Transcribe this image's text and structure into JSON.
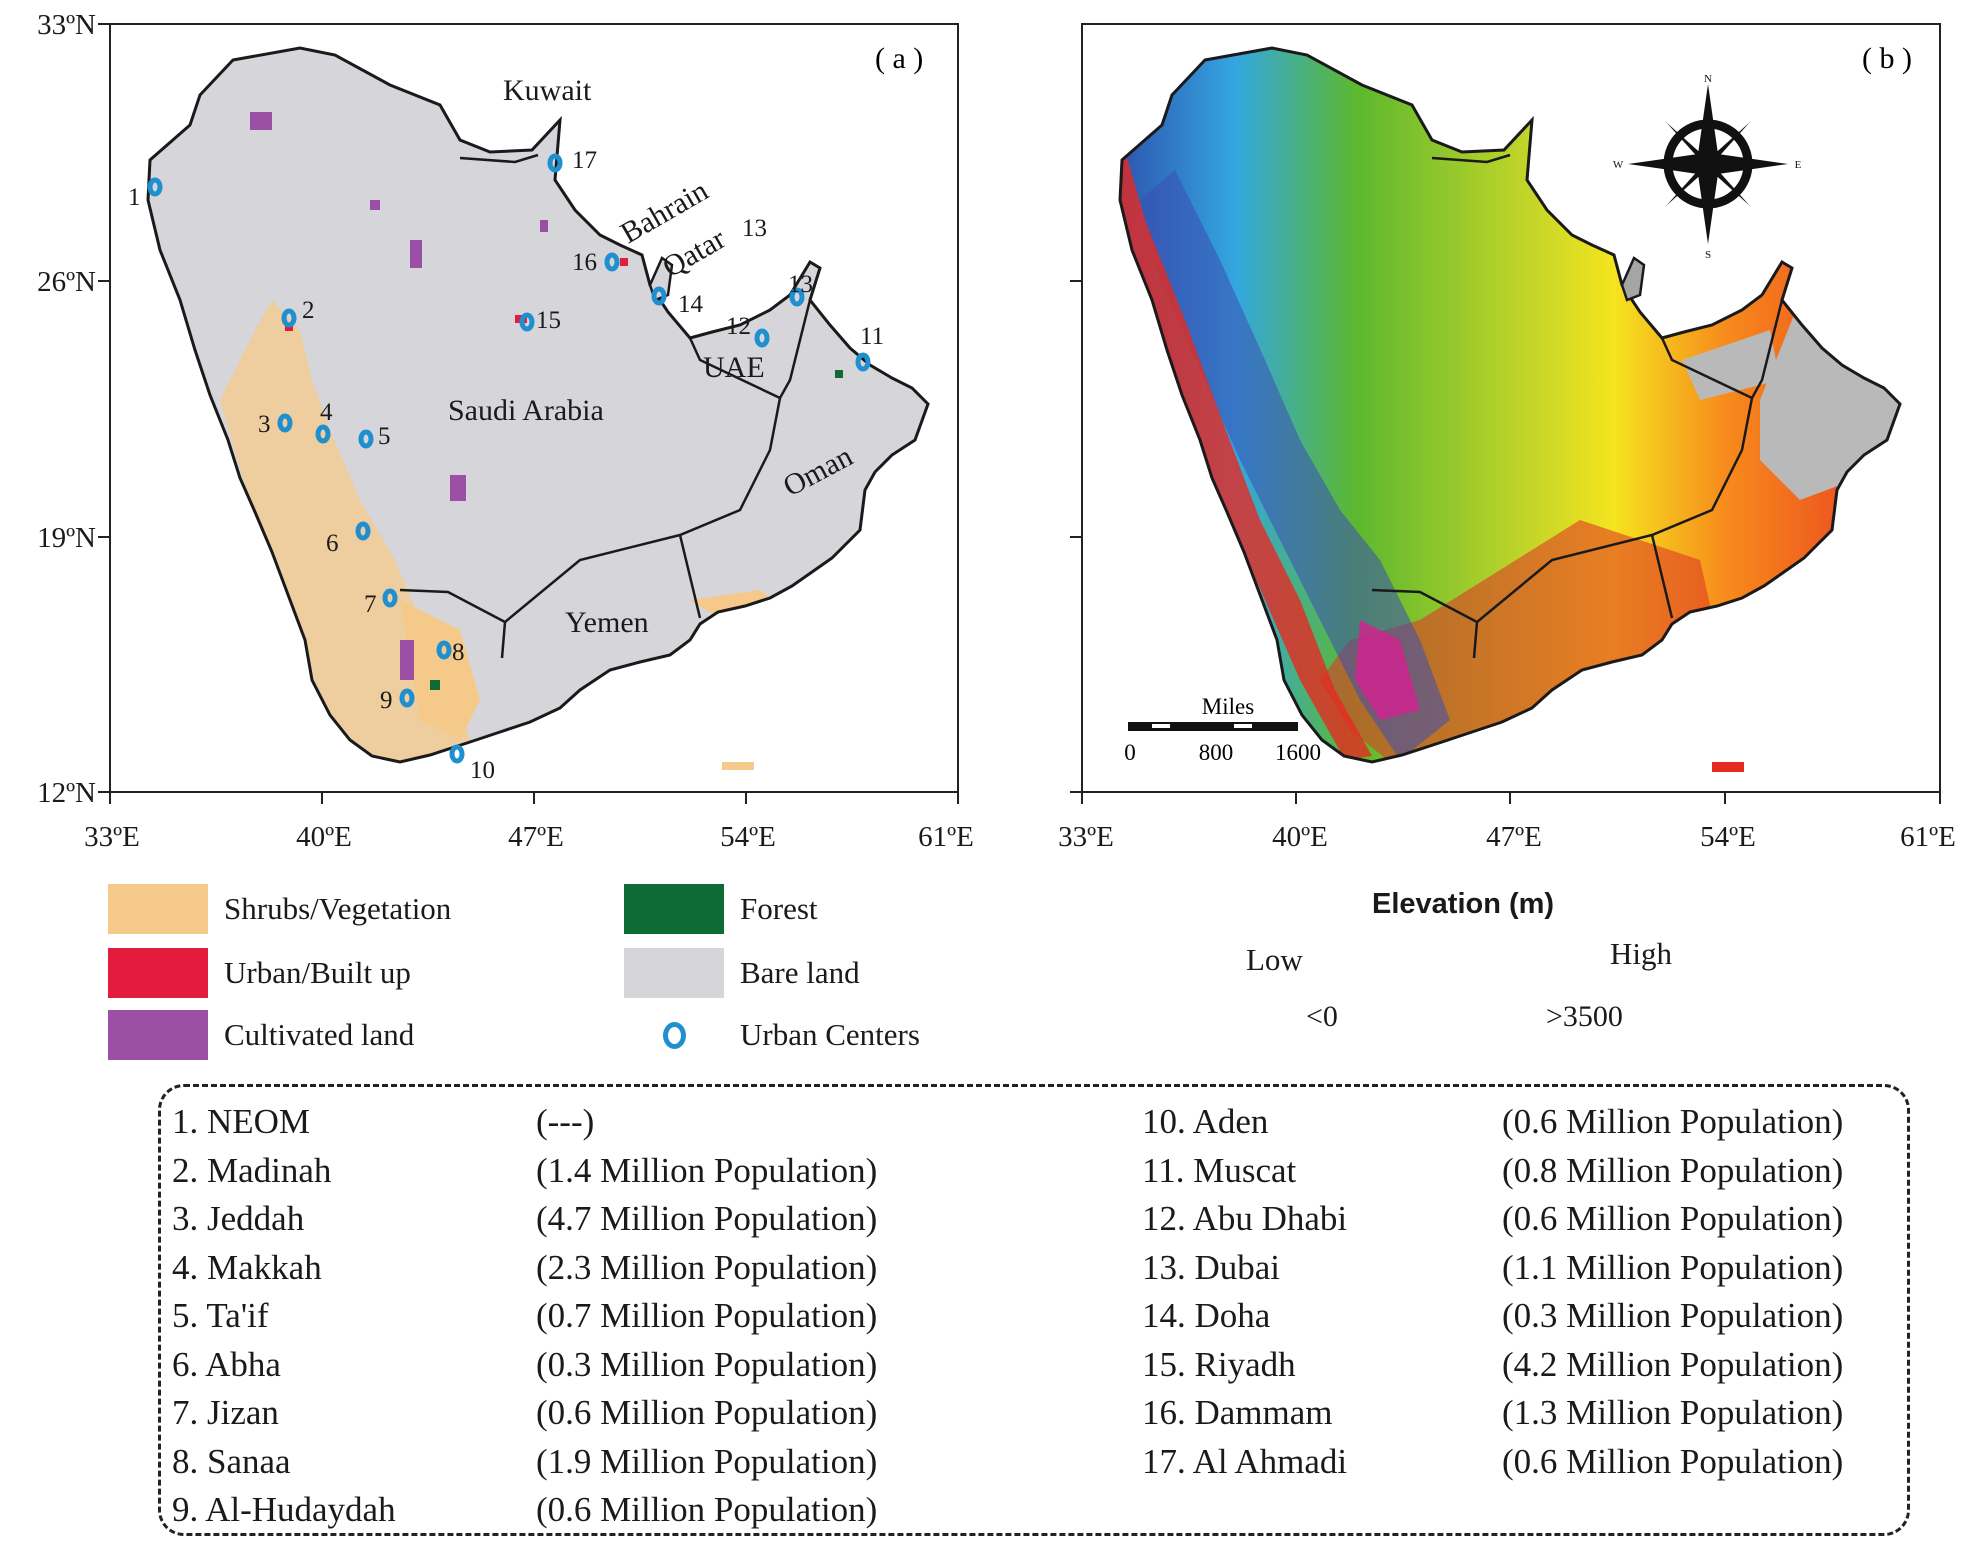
{
  "panels": {
    "a": {
      "label": "( a )",
      "y_ticks": [
        "33ºN",
        "26ºN",
        "19ºN",
        "12ºN"
      ],
      "x_ticks": [
        "33ºE",
        "40ºE",
        "47ºE",
        "54ºE",
        "61ºE"
      ],
      "country_labels": [
        "Kuwait",
        "Bahrain",
        "Qatar",
        "UAE",
        "Saudi Arabia",
        "Oman",
        "Yemen"
      ],
      "city_numbers": [
        "1",
        "2",
        "3",
        "4",
        "5",
        "6",
        "7",
        "8",
        "9",
        "10",
        "11",
        "12",
        "13",
        "13",
        "14",
        "15",
        "16",
        "17"
      ]
    },
    "b": {
      "label": "( b )",
      "x_ticks": [
        "33ºE",
        "40ºE",
        "47ºE",
        "54ºE",
        "61ºE"
      ],
      "compass": {
        "n": "N",
        "s": "S",
        "e": "E",
        "w": "W"
      },
      "scale_bar": {
        "title": "Miles",
        "labels": [
          "0",
          "800",
          "1600"
        ]
      }
    }
  },
  "land_legend": [
    {
      "label": "Shrubs/Vegetation",
      "color": "#f5c98a"
    },
    {
      "label": "Forest",
      "color": "#0f6b35"
    },
    {
      "label": "Urban/Built up",
      "color": "#e31c3d"
    },
    {
      "label": "Bare land",
      "color": "#d6d5da"
    },
    {
      "label": "Cultivated land",
      "color": "#9b4fa5"
    },
    {
      "label": "Urban Centers",
      "color": "#1f8fd0"
    }
  ],
  "elevation_legend": {
    "title": "Elevation (m)",
    "low": "Low",
    "high": "High",
    "min": "<0",
    "max": ">3500"
  },
  "cities": [
    {
      "name": "1. NEOM",
      "pop": "(---)"
    },
    {
      "name": "2. Madinah",
      "pop": "(1.4 Million Population)"
    },
    {
      "name": "3. Jeddah",
      "pop": "(4.7 Million Population)"
    },
    {
      "name": "4. Makkah",
      "pop": "(2.3 Million Population)"
    },
    {
      "name": "5. Ta'if",
      "pop": "(0.7 Million Population)"
    },
    {
      "name": "6. Abha",
      "pop": "(0.3 Million Population)"
    },
    {
      "name": "7. Jizan",
      "pop": "(0.6 Million Population)"
    },
    {
      "name": "8. Sanaa",
      "pop": "(1.9 Million Population)"
    },
    {
      "name": "9. Al-Hudaydah",
      "pop": "(0.6 Million Population)"
    },
    {
      "name": "10. Aden",
      "pop": "(0.6 Million Population)"
    },
    {
      "name": "11. Muscat",
      "pop": "(0.8 Million Population)"
    },
    {
      "name": "12. Abu Dhabi",
      "pop": "(0.6 Million Population)"
    },
    {
      "name": "13. Dubai",
      "pop": "(1.1 Million Population)"
    },
    {
      "name": "14. Doha",
      "pop": "(0.3 Million Population)"
    },
    {
      "name": "15. Riyadh",
      "pop": "(4.2 Million Population)"
    },
    {
      "name": "16. Dammam",
      "pop": "(1.3 Million Population)"
    },
    {
      "name": "17. Al Ahmadi",
      "pop": "(0.6 Million Population)"
    }
  ]
}
